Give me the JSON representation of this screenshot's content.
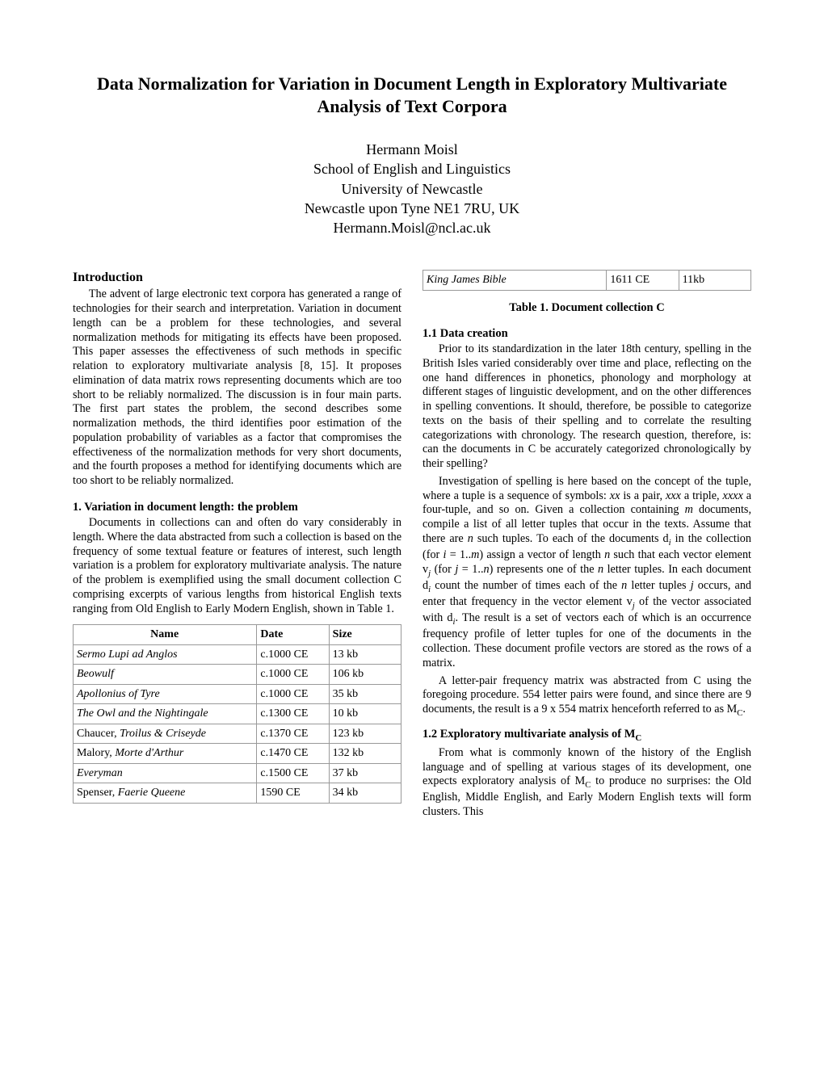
{
  "title": "Data Normalization for Variation in Document Length in Exploratory Multivariate Analysis of Text Corpora",
  "author": {
    "name": "Hermann Moisl",
    "dept": "School of English and Linguistics",
    "university": "University of Newcastle",
    "address": "Newcastle upon Tyne NE1 7RU, UK",
    "email": "Hermann.Moisl@ncl.ac.uk"
  },
  "sections": {
    "intro_heading": "Introduction",
    "intro_p1": "The advent of large electronic text corpora has generated a range of technologies for their search and interpretation. Variation in document length can be a problem for these technologies, and several normalization methods for mitigating its effects have been proposed. This paper assesses the effectiveness of such methods in specific relation to exploratory multivariate analysis [8, 15]. It proposes elimination of data matrix rows representing documents which are too short to be reliably normalized. The discussion is in four main parts. The first part states the problem, the second describes some normalization methods, the third identifies poor estimation of the population probability of variables as a factor that compromises the effectiveness of the normalization methods for very short documents, and the fourth proposes a method for identifying  documents which are too short to be reliably normalized.",
    "s1_heading": "1. Variation in document length: the problem",
    "s1_p1": "Documents in collections can and often do vary considerably in length. Where the data abstracted from such a collection is based on the frequency of some textual feature or features of interest, such length variation is a problem for exploratory multivariate analysis. The nature of the problem is exemplified using the small document collection C comprising excerpts of various lengths from historical English texts ranging from Old English to Early Modern English, shown in Table 1.",
    "table_caption": "Table 1. Document collection C",
    "s11_heading": "1.1 Data creation",
    "s11_p1": "Prior to its standardization in the later 18th century, spelling in the British Isles varied considerably over time and place, reflecting on the one hand differences in phonetics, phonology and morphology at different stages of linguistic development, and on the other differences in spelling conventions. It should, therefore, be possible to categorize texts on the basis of their spelling and to correlate the resulting categorizations with chronology. The research question, therefore, is: can the documents in C be accurately categorized chronologically by their spelling?",
    "s11_p2a": "Investigation of spelling is here based on the concept of the tuple, where a tuple is a sequence of symbols: ",
    "s11_p2_xx": "xx",
    "s11_p2b": " is a pair, ",
    "s11_p2_xxx": "xxx",
    "s11_p2c": " a triple, ",
    "s11_p2_xxxx": "xxxx",
    "s11_p2d": " a four-tuple, and so on. Given a collection containing ",
    "s11_p2_m1": "m",
    "s11_p2e": " documents, compile a list of all letter tuples that occur in the texts. Assume that there are ",
    "s11_p2_n1": "n",
    "s11_p2f": " such tuples. To each of the documents d",
    "s11_p2_i1": "i",
    "s11_p2g": " in the collection (for ",
    "s11_p2_i2": "i",
    "s11_p2h": " = 1..",
    "s11_p2_m2": "m",
    "s11_p2i": ") assign a vector of length ",
    "s11_p2_n2": "n",
    "s11_p2j": " such that each vector element v",
    "s11_p2_j1": "j",
    "s11_p2k": " (for ",
    "s11_p2_j2": "j",
    "s11_p2l": " = 1..",
    "s11_p2_n3": "n",
    "s11_p2m": ") represents one of the ",
    "s11_p2_n4": "n",
    "s11_p2n": " letter tuples. In each document d",
    "s11_p2_i3": "i",
    "s11_p2o": " count the number of times each of the ",
    "s11_p2_n5": "n",
    "s11_p2p": " letter tuples ",
    "s11_p2_j3": "j",
    "s11_p2q": " occurs, and enter that frequency in the vector element v",
    "s11_p2_j4": "j",
    "s11_p2r": " of the vector associated with d",
    "s11_p2_i4": "i",
    "s11_p2s": ". The result is a set of vectors each of which is an occurrence frequency profile of letter tuples for one of the documents in the collection. These document profile vectors are stored as the rows of a matrix.",
    "s11_p3a": "A letter-pair frequency matrix was abstracted from C using the foregoing procedure. 554 letter pairs were found, and since there are 9 documents, the result is a 9 x 554 matrix henceforth referred to as M",
    "s11_p3_c": "C",
    "s11_p3b": ".",
    "s12_heading_a": "1.2 Exploratory multivariate analysis of M",
    "s12_heading_c": "C",
    "s12_p1a": "From what is commonly known of the history of the English language and of spelling at various stages of its development, one expects exploratory analysis of M",
    "s12_p1_c": "C",
    "s12_p1b": " to produce no surprises: the Old English, Middle English, and Early Modern English texts will form clusters. This"
  },
  "table1": {
    "headers": {
      "name": "Name",
      "date": "Date",
      "size": "Size"
    },
    "rows": [
      {
        "name_italic": "Sermo Lupi ad Anglos",
        "date": "c.1000 CE",
        "size": "13 kb"
      },
      {
        "name_italic": "Beowulf",
        "date": "c.1000 CE",
        "size": "106 kb"
      },
      {
        "name_italic": "Apollonius of Tyre",
        "date": "c.1000 CE",
        "size": "35 kb"
      },
      {
        "name_italic": "The Owl and the Nightingale",
        "date": "c.1300 CE",
        "size": "10 kb"
      },
      {
        "name_pre": "Chaucer, ",
        "name_italic": "Troilus & Criseyde",
        "date": "c.1370 CE",
        "size": "123 kb"
      },
      {
        "name_pre": "Malory, ",
        "name_italic": "Morte d'Arthur",
        "date": "c.1470 CE",
        "size": "132 kb"
      },
      {
        "name_italic": "Everyman",
        "date": "c.1500 CE",
        "size": "37 kb"
      },
      {
        "name_pre": "Spenser, ",
        "name_italic": "Faerie Queene",
        "date": "1590 CE",
        "size": "34 kb"
      }
    ]
  },
  "mini_table": {
    "name": "King James Bible",
    "date": "1611 CE",
    "size": "11kb"
  }
}
